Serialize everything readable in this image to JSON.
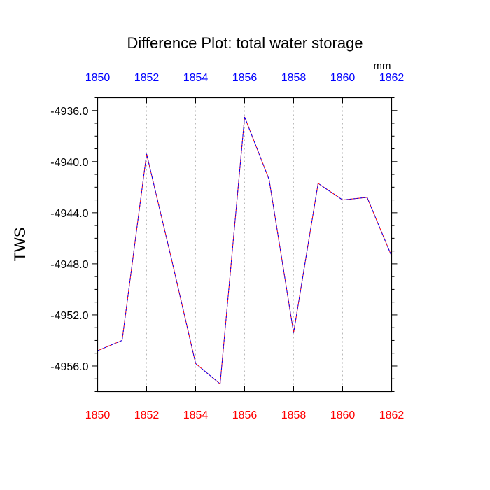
{
  "chart_data": {
    "type": "line",
    "title": "Difference Plot: total water storage",
    "units": "mm",
    "ylabel": "TWS",
    "xlabel": "",
    "xlim": [
      1850,
      1862
    ],
    "ylim": [
      -4958.0,
      -4935.0
    ],
    "x_ticks": [
      1850,
      1852,
      1854,
      1856,
      1858,
      1860,
      1862
    ],
    "x_ticks_top": [
      "1850",
      "1852",
      "1854",
      "1856",
      "1858",
      "1860",
      "1862"
    ],
    "x_ticks_bottom": [
      "1850",
      "1852",
      "1854",
      "1856",
      "1858",
      "1860",
      "1862"
    ],
    "y_ticks": [
      -4936.0,
      -4940.0,
      -4944.0,
      -4948.0,
      -4952.0,
      -4956.0
    ],
    "y_tick_labels": [
      "-4936.0",
      "-4940.0",
      "-4944.0",
      "-4948.0",
      "-4952.0",
      "-4956.0"
    ],
    "grid": "vertical dotted at major x ticks",
    "series": [
      {
        "x": [
          1850,
          1851,
          1852,
          1853,
          1854,
          1855,
          1856,
          1857,
          1858,
          1859,
          1860,
          1861,
          1862
        ],
        "values": [
          -4954.8,
          -4954.0,
          -4939.4,
          -4947.5,
          -4955.8,
          -4957.4,
          -4936.5,
          -4941.4,
          -4953.4,
          -4941.7,
          -4943.0,
          -4942.8,
          -4947.4
        ]
      }
    ],
    "colors": {
      "line_a": "#ff0000",
      "line_b": "#0000ff",
      "top_ticks": "#0000ff",
      "bottom_ticks": "#ff0000",
      "grid": "#bbbbbb"
    }
  }
}
